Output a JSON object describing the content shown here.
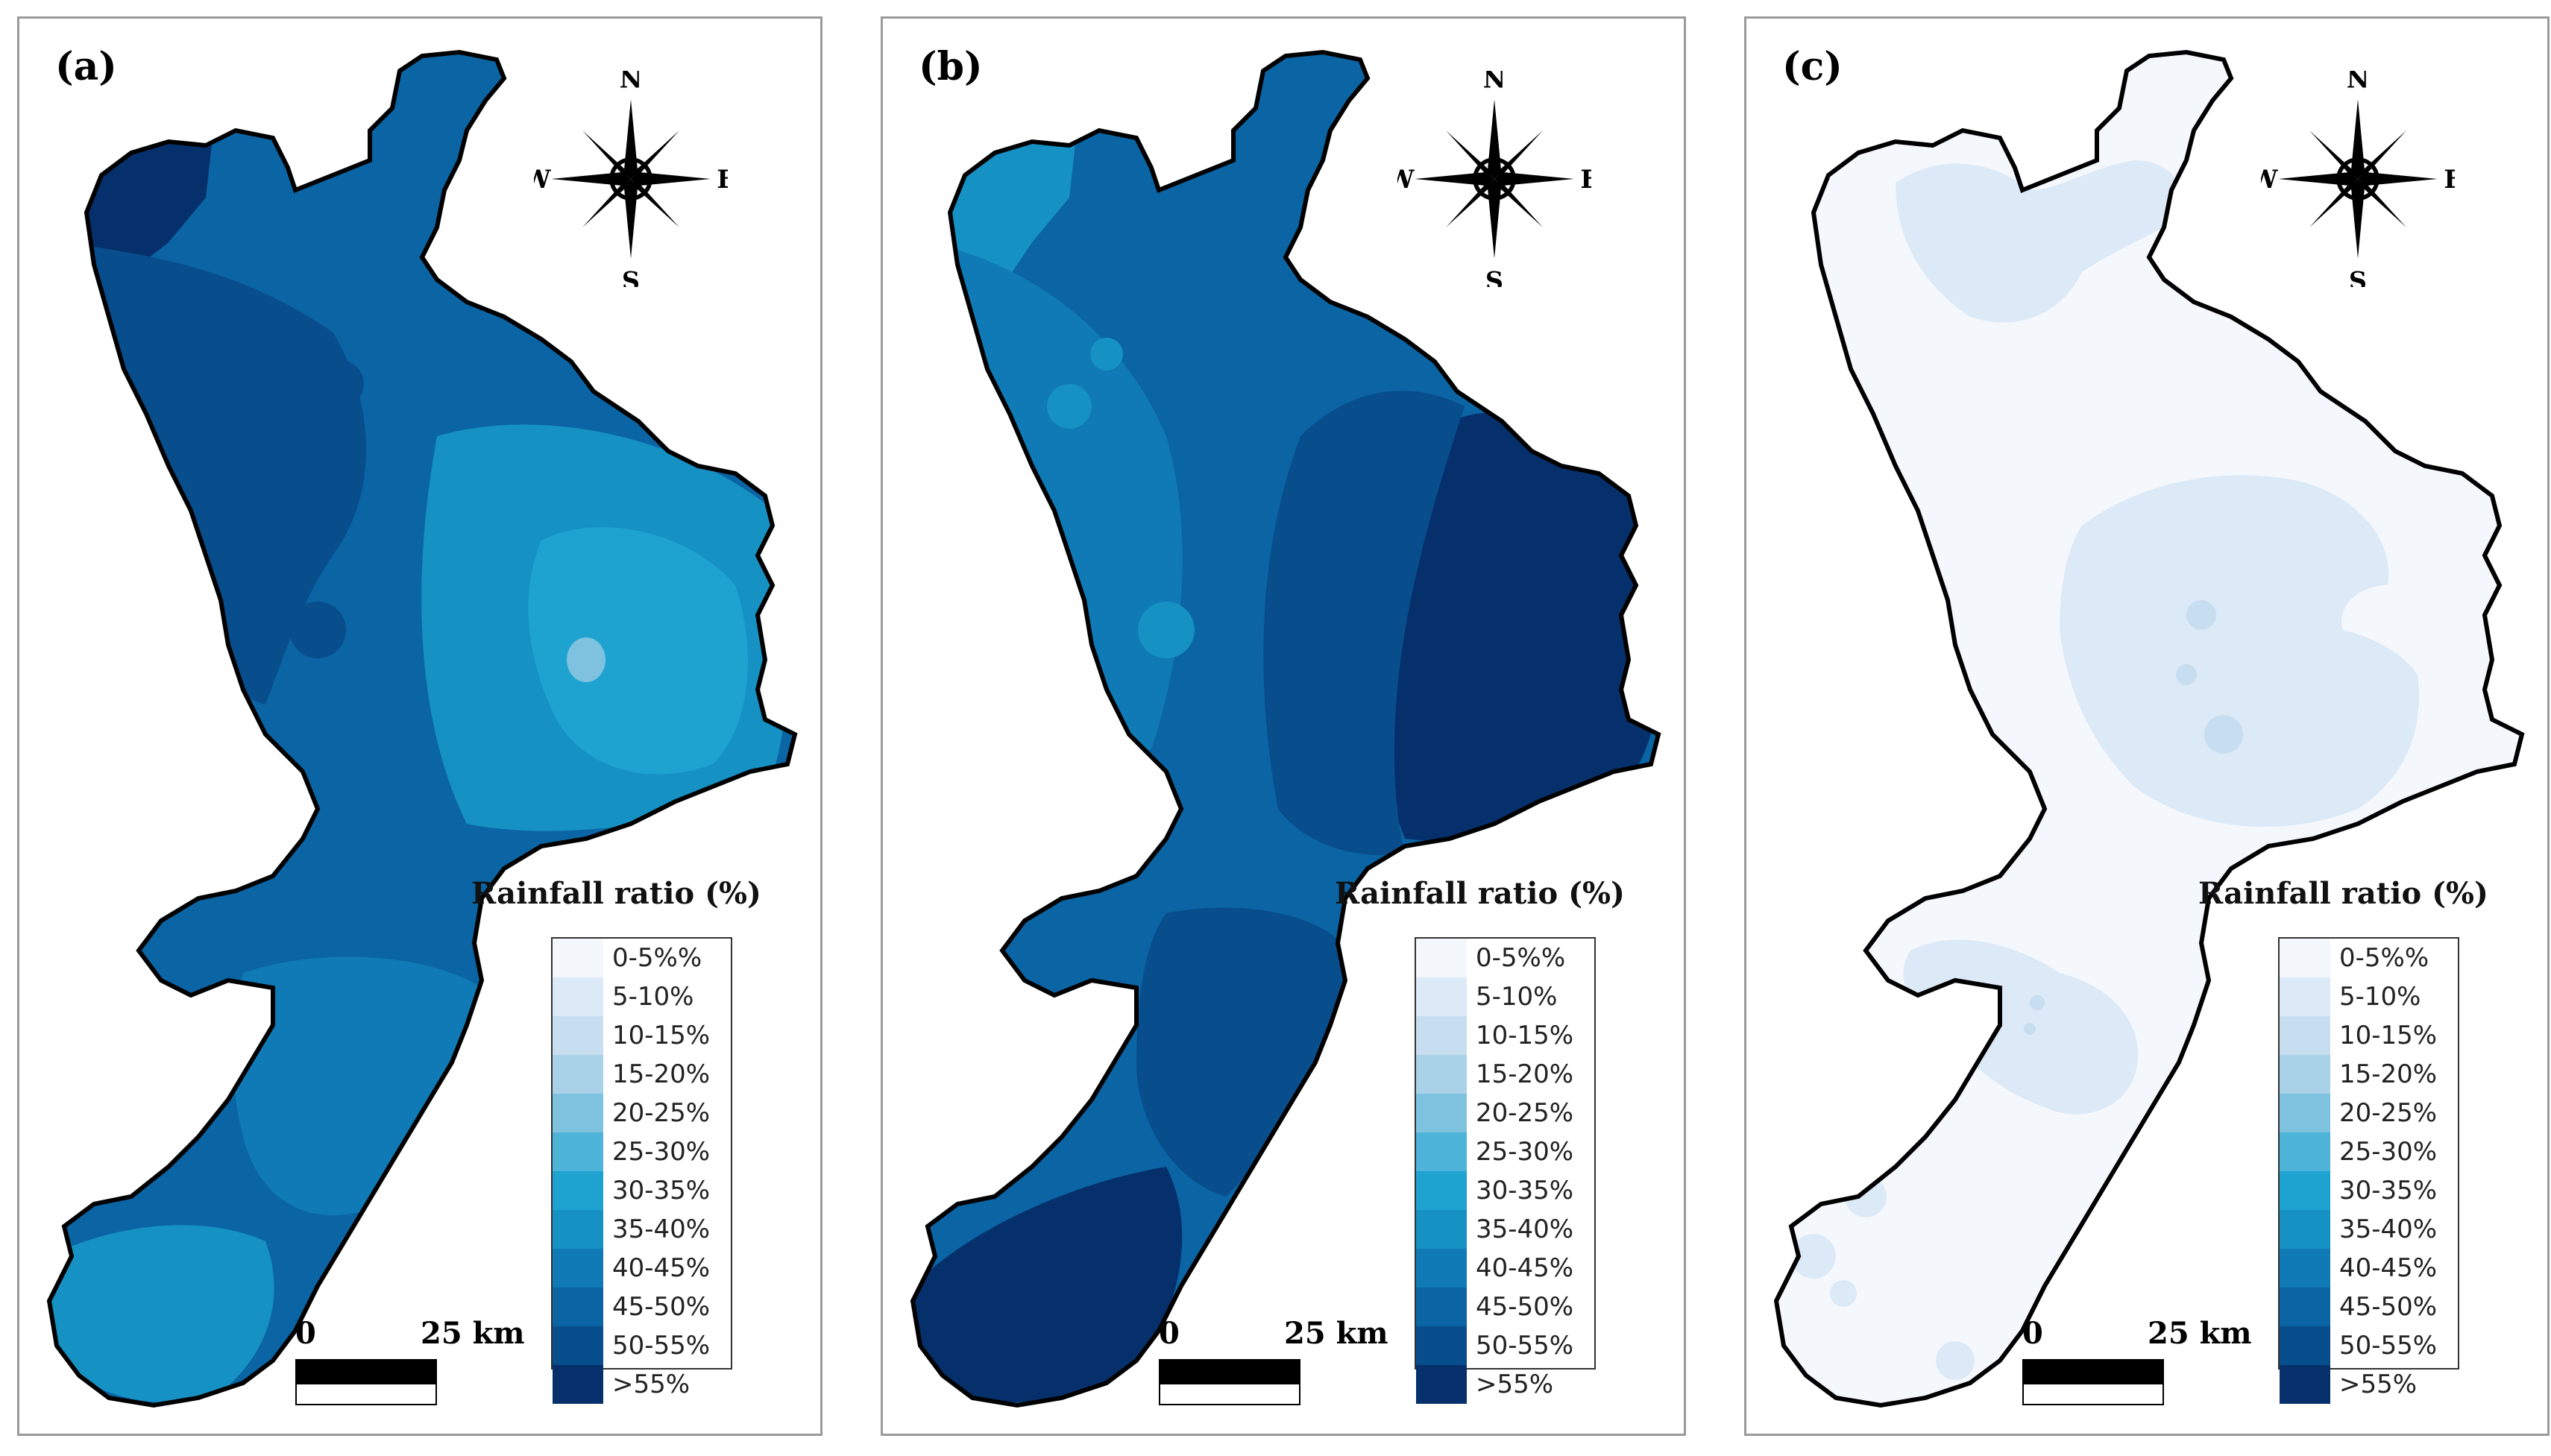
{
  "figure": {
    "legend_title": "Rainfall ratio (%)",
    "legend_classes": [
      {
        "label": "0-5%%",
        "color": "#f4f8fd"
      },
      {
        "label": "5-10%",
        "color": "#dce9f6"
      },
      {
        "label": "10-15%",
        "color": "#c7def0"
      },
      {
        "label": "15-20%",
        "color": "#a9d1e8"
      },
      {
        "label": "20-25%",
        "color": "#7ec2df"
      },
      {
        "label": "25-30%",
        "color": "#4eb3d8"
      },
      {
        "label": "30-35%",
        "color": "#1ea3d1"
      },
      {
        "label": "35-40%",
        "color": "#1691c4"
      },
      {
        "label": "40-45%",
        "color": "#0f7ab5"
      },
      {
        "label": "45-50%",
        "color": "#0b64a3"
      },
      {
        "label": "50-55%",
        "color": "#084d8c"
      },
      {
        "label": ">55%",
        "color": "#06306b"
      }
    ],
    "compass": {
      "n": "N",
      "s": "S",
      "e": "E",
      "w": "W"
    },
    "scale": {
      "zero": "0",
      "length": "25 km"
    }
  },
  "panels": [
    {
      "label": "(a)",
      "base_color": "#0b64a3",
      "regions": [
        {
          "shape": "nw-top",
          "color": "#06306b"
        },
        {
          "shape": "west-coast",
          "color": "#084d8c"
        },
        {
          "shape": "central-east",
          "color": "#1691c4"
        },
        {
          "shape": "east-core",
          "color": "#1ea3d1"
        },
        {
          "shape": "east-spot",
          "color": "#7ec2df"
        },
        {
          "shape": "south-tip",
          "color": "#1691c4"
        },
        {
          "shape": "south-body",
          "color": "#0f7ab5"
        }
      ]
    },
    {
      "label": "(b)",
      "base_color": "#0b64a3",
      "regions": [
        {
          "shape": "nw-top",
          "color": "#1691c4"
        },
        {
          "shape": "west-coast",
          "color": "#0f7ab5"
        },
        {
          "shape": "east-coast",
          "color": "#06306b"
        },
        {
          "shape": "central-east",
          "color": "#084d8c"
        },
        {
          "shape": "south-tip",
          "color": "#06306b"
        },
        {
          "shape": "south-body",
          "color": "#084d8c"
        }
      ]
    },
    {
      "label": "(c)",
      "base_color": "#f4f8fd",
      "regions": [
        {
          "shape": "north-blob",
          "color": "#dce9f6"
        },
        {
          "shape": "central-blob",
          "color": "#dce9f6"
        },
        {
          "shape": "south-blob",
          "color": "#dce9f6"
        },
        {
          "shape": "tip-spots",
          "color": "#dce9f6"
        }
      ]
    }
  ]
}
